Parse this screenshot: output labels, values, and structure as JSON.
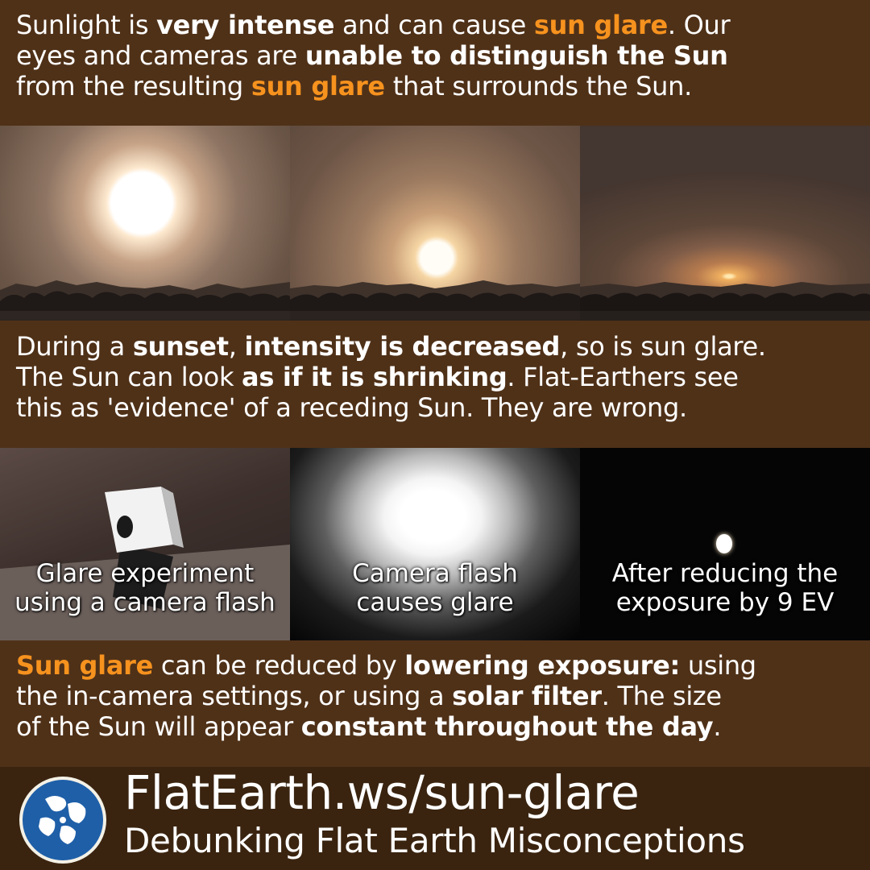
{
  "intro": {
    "line1": [
      {
        "text": "Sunlight is ",
        "style": "plain"
      },
      {
        "text": "very intense",
        "style": "bold"
      },
      {
        "text": " and can cause ",
        "style": "plain"
      },
      {
        "text": "sun glare",
        "style": "orange"
      },
      {
        "text": ". Our",
        "style": "plain"
      }
    ],
    "line2": [
      {
        "text": "eyes and cameras are ",
        "style": "plain"
      },
      {
        "text": "unable to distinguish the Sun",
        "style": "bold"
      }
    ],
    "line3": [
      {
        "text": "from the resulting ",
        "style": "plain"
      },
      {
        "text": "sun glare",
        "style": "orange"
      },
      {
        "text": " that surrounds the Sun.",
        "style": "plain"
      }
    ]
  },
  "sunset_images": [
    {
      "name": "sunset-photo-bright"
    },
    {
      "name": "sunset-photo-lower"
    },
    {
      "name": "sunset-photo-setting"
    }
  ],
  "middle": {
    "line1": [
      {
        "text": "During a ",
        "style": "plain"
      },
      {
        "text": "sunset",
        "style": "bold"
      },
      {
        "text": ", ",
        "style": "plain"
      },
      {
        "text": "intensity is decreased",
        "style": "bold"
      },
      {
        "text": ", so is sun glare.",
        "style": "plain"
      }
    ],
    "line2": [
      {
        "text": "The Sun can look ",
        "style": "plain"
      },
      {
        "text": "as if it is shrinking",
        "style": "bold"
      },
      {
        "text": ". Flat-Earthers see",
        "style": "plain"
      }
    ],
    "line3": [
      {
        "text": "this as 'evidence' of a receding Sun. They are wrong.",
        "style": "plain"
      }
    ]
  },
  "flash_panels": {
    "p1": {
      "line1": "Glare experiment",
      "line2": "using a camera flash"
    },
    "p2": {
      "line1": "Camera flash",
      "line2": "causes glare"
    },
    "p3": {
      "line1": "After reducing the",
      "line2": "exposure by 9 EV"
    }
  },
  "bottom": {
    "line1": [
      {
        "text": "Sun glare",
        "style": "orange"
      },
      {
        "text": " can be reduced by ",
        "style": "plain"
      },
      {
        "text": "lowering exposure:",
        "style": "bold"
      },
      {
        "text": " using",
        "style": "plain"
      }
    ],
    "line2": [
      {
        "text": "the in-camera settings, or using a ",
        "style": "plain"
      },
      {
        "text": "solar filter",
        "style": "bold"
      },
      {
        "text": ". The size",
        "style": "plain"
      }
    ],
    "line3": [
      {
        "text": "of the Sun will appear ",
        "style": "plain"
      },
      {
        "text": "constant throughout the day",
        "style": "bold"
      },
      {
        "text": ".",
        "style": "plain"
      }
    ]
  },
  "footer": {
    "title": "FlatEarth.ws/sun-glare",
    "subtitle": "Debunking Flat Earth Misconceptions",
    "logo_icon": "globe-logo-icon"
  },
  "colors": {
    "band_brown": "#4f3118",
    "footer_brown": "#3a2410",
    "highlight_orange": "#f6921e",
    "text_white": "#ffffff"
  }
}
